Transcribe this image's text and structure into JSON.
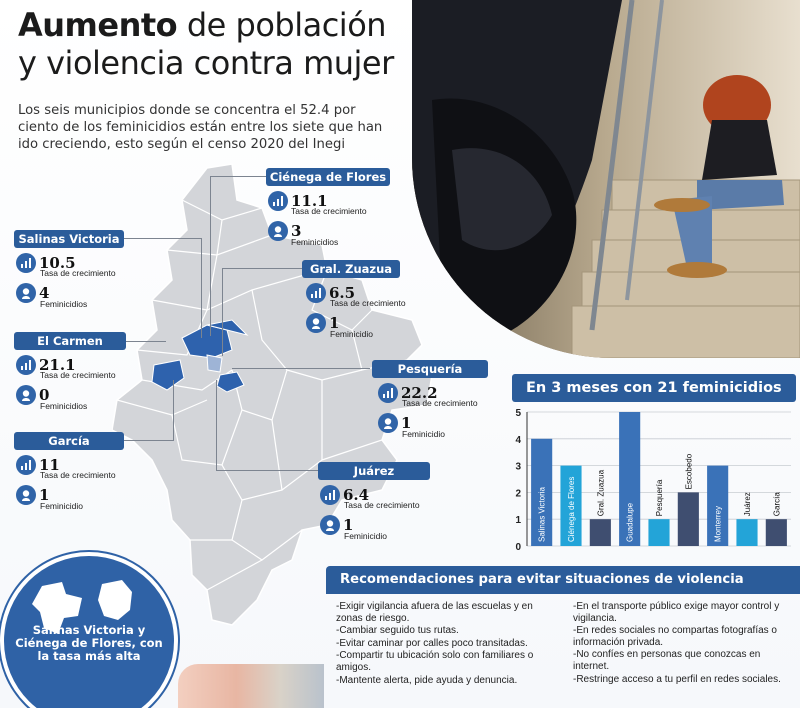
{
  "title": {
    "bold": "Aumento",
    "rest_line1": " de población",
    "line2": "y violencia contra mujer"
  },
  "lead": "Los seis municipios donde se concentra el 52.4 por ciento de los feminicidios están entre los siete que han ido creciendo, esto según el censo 2020 del Inegi",
  "labels": {
    "growth": "Tasa de crecimiento",
    "femicides_plural": "Feminicidios",
    "femicides_singular": "Feminicidio"
  },
  "municipalities": [
    {
      "name": "Ciénega de Flores",
      "growth": "11.1",
      "femicides": "3",
      "fem_label": "Feminicidios"
    },
    {
      "name": "Salinas Victoria",
      "growth": "10.5",
      "femicides": "4",
      "fem_label": "Feminicidios"
    },
    {
      "name": "Gral. Zuazua",
      "growth": "6.5",
      "femicides": "1",
      "fem_label": "Feminicidio"
    },
    {
      "name": "El Carmen",
      "growth": "21.1",
      "femicides": "0",
      "fem_label": "Feminicidios"
    },
    {
      "name": "Pesquería",
      "growth": "22.2",
      "femicides": "1",
      "fem_label": "Feminicidio"
    },
    {
      "name": "García",
      "growth": "11",
      "femicides": "1",
      "fem_label": "Feminicidio"
    },
    {
      "name": "Juárez",
      "growth": "6.4",
      "femicides": "1",
      "fem_label": "Feminicidio"
    }
  ],
  "chart_data": {
    "type": "bar",
    "title": "En 3 meses con 21 feminicidios",
    "categories": [
      "Salinas Victoria",
      "Ciénega de Flores",
      "Gral. Zuazua",
      "Guadalupe",
      "Pesquería",
      "Escobedo",
      "Monterrey",
      "Juárez",
      "García"
    ],
    "values": [
      4,
      3,
      1,
      5,
      1,
      2,
      3,
      1,
      1
    ],
    "bar_colors": [
      "#3a72b8",
      "#23a4d8",
      "#3f4e70",
      "#3a72b8",
      "#23a4d8",
      "#3f4e70",
      "#3a72b8",
      "#23a4d8",
      "#3f4e70"
    ],
    "yticks": [
      "0",
      "1",
      "2",
      "3",
      "4",
      "5"
    ],
    "ylim": [
      0,
      5
    ],
    "xlabel": "",
    "ylabel": ""
  },
  "callout": "Salinas Victoria y Ciénega de Flores, con la tasa más alta",
  "recommendations": {
    "title": "Recomendaciones para evitar situaciones de violencia",
    "left": [
      "-Exigir vigilancia afuera de las escuelas y en zonas de riesgo.",
      "-Cambiar seguido tus rutas.",
      "-Evitar caminar por calles poco transitadas.",
      "-Compartir tu ubicación solo con familiares o amigos.",
      "-Mantente alerta, pide ayuda y denuncia."
    ],
    "right": [
      "-En el transporte público exige mayor control y vigilancia.",
      "-En redes sociales no compartas fotografías o información privada.",
      "-No confíes en personas que conozcas en internet.",
      "-Restringe acceso a tu perfil en redes sociales."
    ]
  },
  "colors": {
    "accent": "#2b5c9a",
    "map_fill": "#d3d5d9",
    "map_highlight": "#2e62ad"
  }
}
